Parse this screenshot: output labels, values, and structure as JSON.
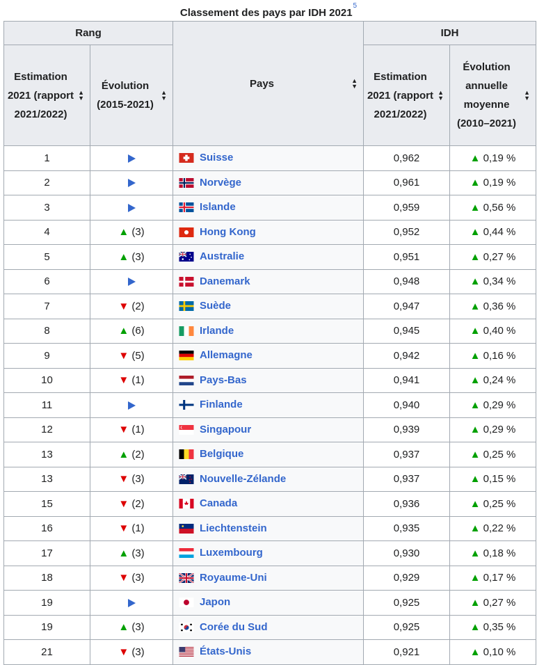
{
  "caption": {
    "title": "Classement des pays par IDH 2021",
    "ref": "5"
  },
  "headers": {
    "rang": "Rang",
    "idh": "IDH",
    "pays": "Pays",
    "rang_estimation": "Estimation 2021 (rapport 2021/2022)",
    "rang_evolution": "Évolution (2015-2021)",
    "idh_estimation": "Estimation 2021 (rapport 2021/2022)",
    "idh_evolution": "Évolution annuelle moyenne (2010–2021)"
  },
  "rows": [
    {
      "rank": "1",
      "evo": "none",
      "evo_text": "",
      "country": "Suisse",
      "flag": "ch",
      "idh": "0,962",
      "growth": "0,19 %"
    },
    {
      "rank": "2",
      "evo": "none",
      "evo_text": "",
      "country": "Norvège",
      "flag": "no",
      "idh": "0,961",
      "growth": "0,19 %"
    },
    {
      "rank": "3",
      "evo": "none",
      "evo_text": "",
      "country": "Islande",
      "flag": "is",
      "idh": "0,959",
      "growth": "0,56 %"
    },
    {
      "rank": "4",
      "evo": "up",
      "evo_text": "(3)",
      "country": "Hong Kong",
      "flag": "hk",
      "idh": "0,952",
      "growth": "0,44 %"
    },
    {
      "rank": "5",
      "evo": "up",
      "evo_text": "(3)",
      "country": "Australie",
      "flag": "au",
      "idh": "0,951",
      "growth": "0,27 %"
    },
    {
      "rank": "6",
      "evo": "none",
      "evo_text": "",
      "country": "Danemark",
      "flag": "dk",
      "idh": "0,948",
      "growth": "0,34 %"
    },
    {
      "rank": "7",
      "evo": "down",
      "evo_text": "(2)",
      "country": "Suède",
      "flag": "se",
      "idh": "0,947",
      "growth": "0,36 %"
    },
    {
      "rank": "8",
      "evo": "up",
      "evo_text": "(6)",
      "country": "Irlande",
      "flag": "ie",
      "idh": "0,945",
      "growth": "0,40 %"
    },
    {
      "rank": "9",
      "evo": "down",
      "evo_text": "(5)",
      "country": "Allemagne",
      "flag": "de",
      "idh": "0,942",
      "growth": "0,16 %"
    },
    {
      "rank": "10",
      "evo": "down",
      "evo_text": "(1)",
      "country": "Pays-Bas",
      "flag": "nl",
      "idh": "0,941",
      "growth": "0,24 %"
    },
    {
      "rank": "11",
      "evo": "none",
      "evo_text": "",
      "country": "Finlande",
      "flag": "fi",
      "idh": "0,940",
      "growth": "0,29 %"
    },
    {
      "rank": "12",
      "evo": "down",
      "evo_text": "(1)",
      "country": "Singapour",
      "flag": "sg",
      "idh": "0,939",
      "growth": "0,29 %"
    },
    {
      "rank": "13",
      "evo": "up",
      "evo_text": "(2)",
      "country": "Belgique",
      "flag": "be",
      "idh": "0,937",
      "growth": "0,25 %"
    },
    {
      "rank": "13",
      "evo": "down",
      "evo_text": "(3)",
      "country": "Nouvelle-Zélande",
      "flag": "nz",
      "idh": "0,937",
      "growth": "0,15 %"
    },
    {
      "rank": "15",
      "evo": "down",
      "evo_text": "(2)",
      "country": "Canada",
      "flag": "ca",
      "idh": "0,936",
      "growth": "0,25 %"
    },
    {
      "rank": "16",
      "evo": "down",
      "evo_text": "(1)",
      "country": "Liechtenstein",
      "flag": "li",
      "idh": "0,935",
      "growth": "0,22 %"
    },
    {
      "rank": "17",
      "evo": "up",
      "evo_text": "(3)",
      "country": "Luxembourg",
      "flag": "lu",
      "idh": "0,930",
      "growth": "0,18 %"
    },
    {
      "rank": "18",
      "evo": "down",
      "evo_text": "(3)",
      "country": "Royaume-Uni",
      "flag": "gb",
      "idh": "0,929",
      "growth": "0,17 %"
    },
    {
      "rank": "19",
      "evo": "none",
      "evo_text": "",
      "country": "Japon",
      "flag": "jp",
      "idh": "0,925",
      "growth": "0,27 %"
    },
    {
      "rank": "19",
      "evo": "up",
      "evo_text": "(3)",
      "country": "Corée du Sud",
      "flag": "kr",
      "idh": "0,925",
      "growth": "0,35 %"
    },
    {
      "rank": "21",
      "evo": "down",
      "evo_text": "(3)",
      "country": "États-Unis",
      "flag": "us",
      "idh": "0,921",
      "growth": "0,10 %"
    }
  ],
  "colors": {
    "link": "#3366cc",
    "up": "#00a000",
    "down": "#dd0000",
    "header_bg": "#eaecf0",
    "border": "#a2a9b1"
  }
}
